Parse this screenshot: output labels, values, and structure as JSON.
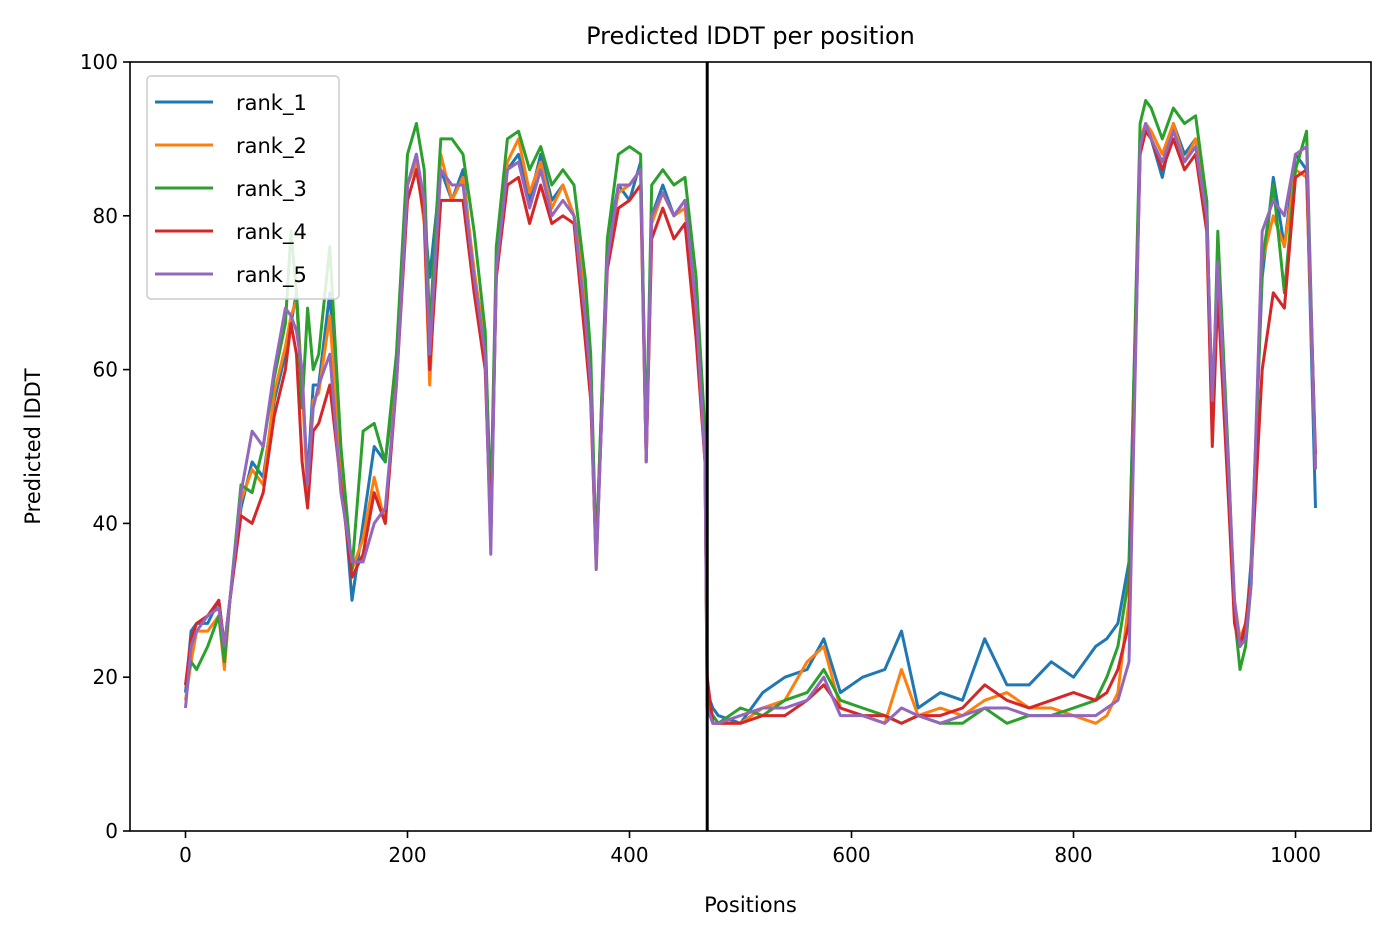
{
  "chart_data": {
    "type": "line",
    "title": "Predicted lDDT per position",
    "xlabel": "Positions",
    "ylabel": "Predicted lDDT",
    "xlim": [
      -50,
      1068
    ],
    "ylim": [
      0,
      100
    ],
    "x_ticks": [
      0,
      200,
      400,
      600,
      800,
      1000
    ],
    "y_ticks": [
      0,
      20,
      40,
      60,
      80,
      100
    ],
    "grid": false,
    "legend_position": "top-left",
    "vertical_line": {
      "x": 470,
      "color": "#000000"
    },
    "series": [
      {
        "name": "rank_1",
        "color": "#1f77b4",
        "x": [
          0,
          5,
          10,
          20,
          30,
          35,
          40,
          50,
          60,
          70,
          80,
          90,
          95,
          100,
          105,
          110,
          115,
          120,
          130,
          140,
          150,
          160,
          170,
          180,
          190,
          200,
          208,
          215,
          220,
          230,
          240,
          250,
          260,
          270,
          275,
          280,
          290,
          300,
          310,
          320,
          330,
          340,
          350,
          360,
          365,
          370,
          380,
          390,
          400,
          410,
          415,
          420,
          430,
          440,
          450,
          460,
          468,
          470,
          475,
          480,
          500,
          520,
          540,
          560,
          575,
          590,
          610,
          630,
          645,
          660,
          680,
          700,
          720,
          740,
          760,
          780,
          800,
          820,
          830,
          840,
          850,
          860,
          865,
          870,
          880,
          890,
          900,
          910,
          920,
          925,
          930,
          940,
          945,
          950,
          955,
          960,
          970,
          980,
          990,
          1000,
          1010,
          1018
        ],
        "values": [
          18,
          26,
          27,
          27,
          30,
          24,
          30,
          42,
          48,
          46,
          56,
          62,
          66,
          70,
          58,
          46,
          58,
          58,
          70,
          48,
          30,
          40,
          50,
          48,
          60,
          84,
          88,
          80,
          72,
          86,
          82,
          86,
          72,
          64,
          40,
          72,
          86,
          88,
          82,
          88,
          82,
          84,
          80,
          72,
          58,
          36,
          76,
          84,
          82,
          87,
          50,
          80,
          84,
          80,
          82,
          68,
          50,
          18,
          16,
          15,
          14,
          18,
          20,
          21,
          25,
          18,
          20,
          21,
          26,
          16,
          18,
          17,
          25,
          19,
          19,
          22,
          20,
          24,
          25,
          27,
          35,
          88,
          92,
          90,
          85,
          92,
          88,
          90,
          82,
          52,
          75,
          45,
          28,
          24,
          26,
          35,
          72,
          85,
          76,
          88,
          86,
          42
        ]
      },
      {
        "name": "rank_2",
        "color": "#ff7f0e",
        "x": [
          0,
          5,
          10,
          20,
          30,
          35,
          40,
          50,
          60,
          70,
          80,
          90,
          95,
          100,
          105,
          110,
          115,
          120,
          130,
          140,
          150,
          160,
          170,
          180,
          190,
          200,
          208,
          215,
          220,
          230,
          240,
          250,
          260,
          270,
          275,
          280,
          290,
          300,
          310,
          320,
          330,
          340,
          350,
          360,
          365,
          370,
          380,
          390,
          400,
          410,
          415,
          420,
          430,
          440,
          450,
          460,
          468,
          470,
          475,
          480,
          500,
          520,
          540,
          560,
          575,
          590,
          610,
          630,
          645,
          660,
          680,
          700,
          720,
          740,
          760,
          780,
          800,
          820,
          830,
          840,
          850,
          860,
          865,
          870,
          880,
          890,
          900,
          910,
          920,
          925,
          930,
          940,
          945,
          950,
          955,
          960,
          970,
          980,
          990,
          1000,
          1010,
          1018
        ],
        "values": [
          17,
          22,
          26,
          26,
          28,
          21,
          30,
          43,
          47,
          45,
          57,
          63,
          67,
          69,
          58,
          44,
          56,
          57,
          67,
          46,
          34,
          38,
          46,
          40,
          60,
          84,
          87,
          79,
          58,
          88,
          82,
          85,
          73,
          63,
          38,
          74,
          87,
          90,
          83,
          87,
          81,
          84,
          80,
          70,
          57,
          34,
          75,
          83,
          84,
          86,
          48,
          79,
          83,
          80,
          81,
          66,
          48,
          17,
          15,
          14,
          14,
          16,
          17,
          22,
          24,
          16,
          15,
          14,
          21,
          15,
          16,
          15,
          17,
          18,
          16,
          16,
          15,
          14,
          15,
          18,
          30,
          90,
          92,
          91,
          88,
          92,
          87,
          90,
          80,
          55,
          72,
          45,
          30,
          25,
          27,
          33,
          74,
          80,
          76,
          86,
          85,
          48
        ]
      },
      {
        "name": "rank_3",
        "color": "#2ca02c",
        "x": [
          0,
          5,
          10,
          20,
          30,
          35,
          40,
          50,
          60,
          70,
          80,
          90,
          95,
          100,
          105,
          110,
          115,
          120,
          130,
          140,
          150,
          160,
          170,
          180,
          190,
          200,
          208,
          215,
          220,
          230,
          240,
          250,
          260,
          270,
          275,
          280,
          290,
          300,
          310,
          320,
          330,
          340,
          350,
          360,
          365,
          370,
          380,
          390,
          400,
          410,
          415,
          420,
          430,
          440,
          450,
          460,
          468,
          470,
          475,
          480,
          500,
          520,
          540,
          560,
          575,
          590,
          610,
          630,
          645,
          660,
          680,
          700,
          720,
          740,
          760,
          780,
          800,
          820,
          830,
          840,
          850,
          860,
          865,
          870,
          880,
          890,
          900,
          910,
          920,
          925,
          930,
          940,
          945,
          950,
          955,
          960,
          970,
          980,
          990,
          1000,
          1010,
          1018
        ],
        "values": [
          19,
          22,
          21,
          24,
          28,
          22,
          30,
          45,
          44,
          50,
          59,
          66,
          78,
          70,
          55,
          68,
          60,
          62,
          76,
          50,
          34,
          52,
          53,
          48,
          62,
          88,
          92,
          86,
          65,
          90,
          90,
          88,
          78,
          65,
          42,
          76,
          90,
          91,
          86,
          89,
          84,
          86,
          84,
          72,
          62,
          36,
          77,
          88,
          89,
          88,
          50,
          84,
          86,
          84,
          85,
          72,
          52,
          16,
          15,
          14,
          16,
          15,
          17,
          18,
          21,
          17,
          16,
          15,
          14,
          15,
          14,
          14,
          16,
          14,
          15,
          15,
          16,
          17,
          20,
          24,
          33,
          92,
          95,
          94,
          90,
          94,
          92,
          93,
          82,
          52,
          78,
          47,
          28,
          21,
          24,
          32,
          74,
          84,
          70,
          86,
          91,
          47
        ]
      },
      {
        "name": "rank_4",
        "color": "#d62728",
        "x": [
          0,
          5,
          10,
          20,
          30,
          35,
          40,
          50,
          60,
          70,
          80,
          90,
          95,
          100,
          105,
          110,
          115,
          120,
          130,
          140,
          150,
          160,
          170,
          180,
          190,
          200,
          208,
          215,
          220,
          230,
          240,
          250,
          260,
          270,
          275,
          280,
          290,
          300,
          310,
          320,
          330,
          340,
          350,
          360,
          365,
          370,
          380,
          390,
          400,
          410,
          415,
          420,
          430,
          440,
          450,
          460,
          468,
          470,
          475,
          480,
          500,
          520,
          540,
          560,
          575,
          590,
          610,
          630,
          645,
          660,
          680,
          700,
          720,
          740,
          760,
          780,
          800,
          820,
          830,
          840,
          850,
          860,
          865,
          870,
          880,
          890,
          900,
          910,
          920,
          925,
          930,
          940,
          945,
          950,
          955,
          960,
          970,
          980,
          990,
          1000,
          1010,
          1018
        ],
        "values": [
          19,
          25,
          27,
          28,
          30,
          24,
          30,
          41,
          40,
          44,
          54,
          60,
          66,
          62,
          48,
          42,
          52,
          53,
          58,
          45,
          33,
          36,
          44,
          40,
          58,
          82,
          86,
          80,
          60,
          82,
          82,
          82,
          70,
          60,
          38,
          72,
          84,
          85,
          79,
          84,
          79,
          80,
          79,
          64,
          56,
          35,
          73,
          81,
          82,
          84,
          48,
          77,
          81,
          77,
          79,
          64,
          48,
          20,
          14,
          14,
          14,
          15,
          15,
          17,
          19,
          16,
          15,
          15,
          14,
          15,
          15,
          16,
          19,
          17,
          16,
          17,
          18,
          17,
          18,
          21,
          27,
          88,
          91,
          90,
          86,
          90,
          86,
          88,
          78,
          50,
          70,
          42,
          27,
          24,
          27,
          33,
          60,
          70,
          68,
          85,
          86,
          49
        ]
      },
      {
        "name": "rank_5",
        "color": "#9467bd",
        "x": [
          0,
          5,
          10,
          20,
          30,
          35,
          40,
          50,
          60,
          70,
          80,
          90,
          95,
          100,
          105,
          110,
          115,
          120,
          130,
          140,
          150,
          160,
          170,
          180,
          190,
          200,
          208,
          215,
          220,
          230,
          240,
          250,
          260,
          270,
          275,
          280,
          290,
          300,
          310,
          320,
          330,
          340,
          350,
          360,
          365,
          370,
          380,
          390,
          400,
          410,
          415,
          420,
          430,
          440,
          450,
          460,
          468,
          470,
          475,
          480,
          500,
          520,
          540,
          560,
          575,
          590,
          610,
          630,
          645,
          660,
          680,
          700,
          720,
          740,
          760,
          780,
          800,
          820,
          830,
          840,
          850,
          860,
          865,
          870,
          880,
          890,
          900,
          910,
          920,
          925,
          930,
          940,
          945,
          950,
          955,
          960,
          970,
          980,
          990,
          1000,
          1010,
          1018
        ],
        "values": [
          16,
          24,
          26,
          28,
          29,
          24,
          30,
          44,
          52,
          50,
          60,
          68,
          67,
          65,
          60,
          45,
          55,
          58,
          62,
          44,
          35,
          35,
          40,
          42,
          58,
          84,
          88,
          82,
          62,
          86,
          84,
          84,
          72,
          62,
          36,
          73,
          86,
          87,
          81,
          86,
          80,
          82,
          80,
          67,
          58,
          34,
          74,
          84,
          84,
          86,
          48,
          80,
          83,
          80,
          82,
          68,
          48,
          16,
          14,
          14,
          15,
          16,
          16,
          17,
          20,
          15,
          15,
          14,
          16,
          15,
          14,
          15,
          16,
          16,
          15,
          15,
          15,
          15,
          16,
          17,
          22,
          89,
          92,
          90,
          87,
          91,
          87,
          89,
          80,
          56,
          74,
          46,
          30,
          24,
          25,
          32,
          78,
          82,
          80,
          88,
          89,
          47
        ]
      }
    ]
  }
}
